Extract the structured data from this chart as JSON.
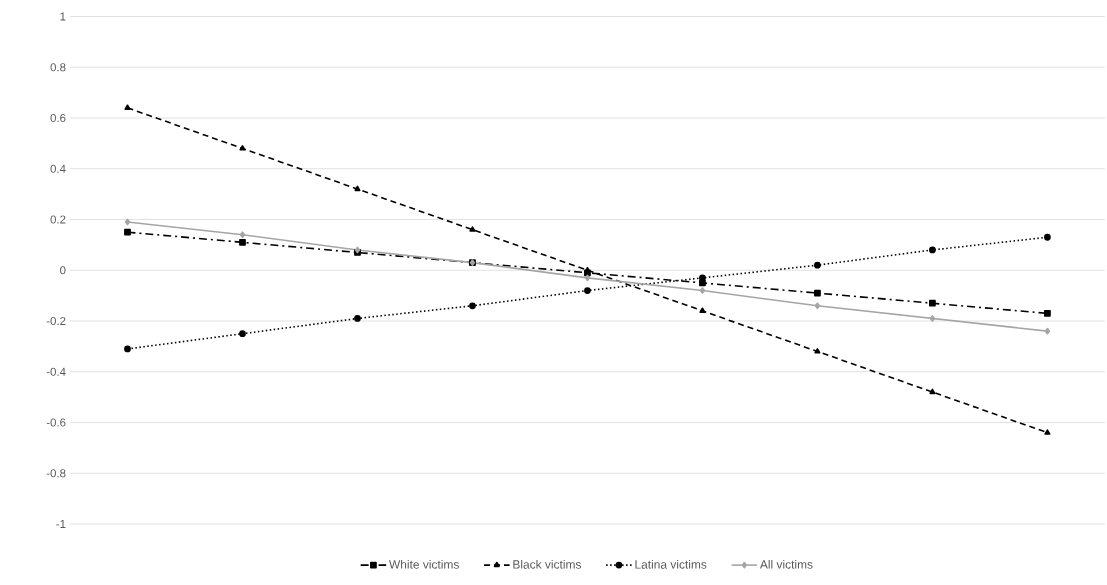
{
  "chart_data": {
    "type": "line",
    "categories": [
      null,
      null,
      null,
      null,
      null,
      null,
      null,
      null,
      null
    ],
    "series": [
      {
        "name": "White victims",
        "color": "#000000",
        "marker": "square",
        "line_style": "dashdot",
        "values": [
          0.15,
          0.11,
          0.07,
          0.03,
          -0.01,
          -0.05,
          -0.09,
          -0.13,
          -0.17
        ]
      },
      {
        "name": "Black victims",
        "color": "#000000",
        "marker": "triangle",
        "line_style": "dashed",
        "values": [
          0.64,
          0.48,
          0.32,
          0.16,
          0.0,
          -0.16,
          -0.32,
          -0.48,
          -0.64
        ]
      },
      {
        "name": "Latina victims",
        "color": "#000000",
        "marker": "circle",
        "line_style": "dotted",
        "values": [
          -0.31,
          -0.25,
          -0.19,
          -0.14,
          -0.08,
          -0.03,
          0.02,
          0.08,
          0.13
        ]
      },
      {
        "name": "All victims",
        "color": "#a5a5a5",
        "marker": "diamond",
        "line_style": "solid",
        "values": [
          0.19,
          0.14,
          0.08,
          0.03,
          -0.03,
          -0.08,
          -0.14,
          -0.19,
          -0.24
        ]
      }
    ],
    "ylim": [
      -1,
      1
    ],
    "yticks": [
      -1,
      -0.8,
      -0.6,
      -0.4,
      -0.2,
      0,
      0.2,
      0.4,
      0.6,
      0.8,
      1
    ],
    "grid": "y",
    "legend": "bottom",
    "tick_labels": "y"
  }
}
